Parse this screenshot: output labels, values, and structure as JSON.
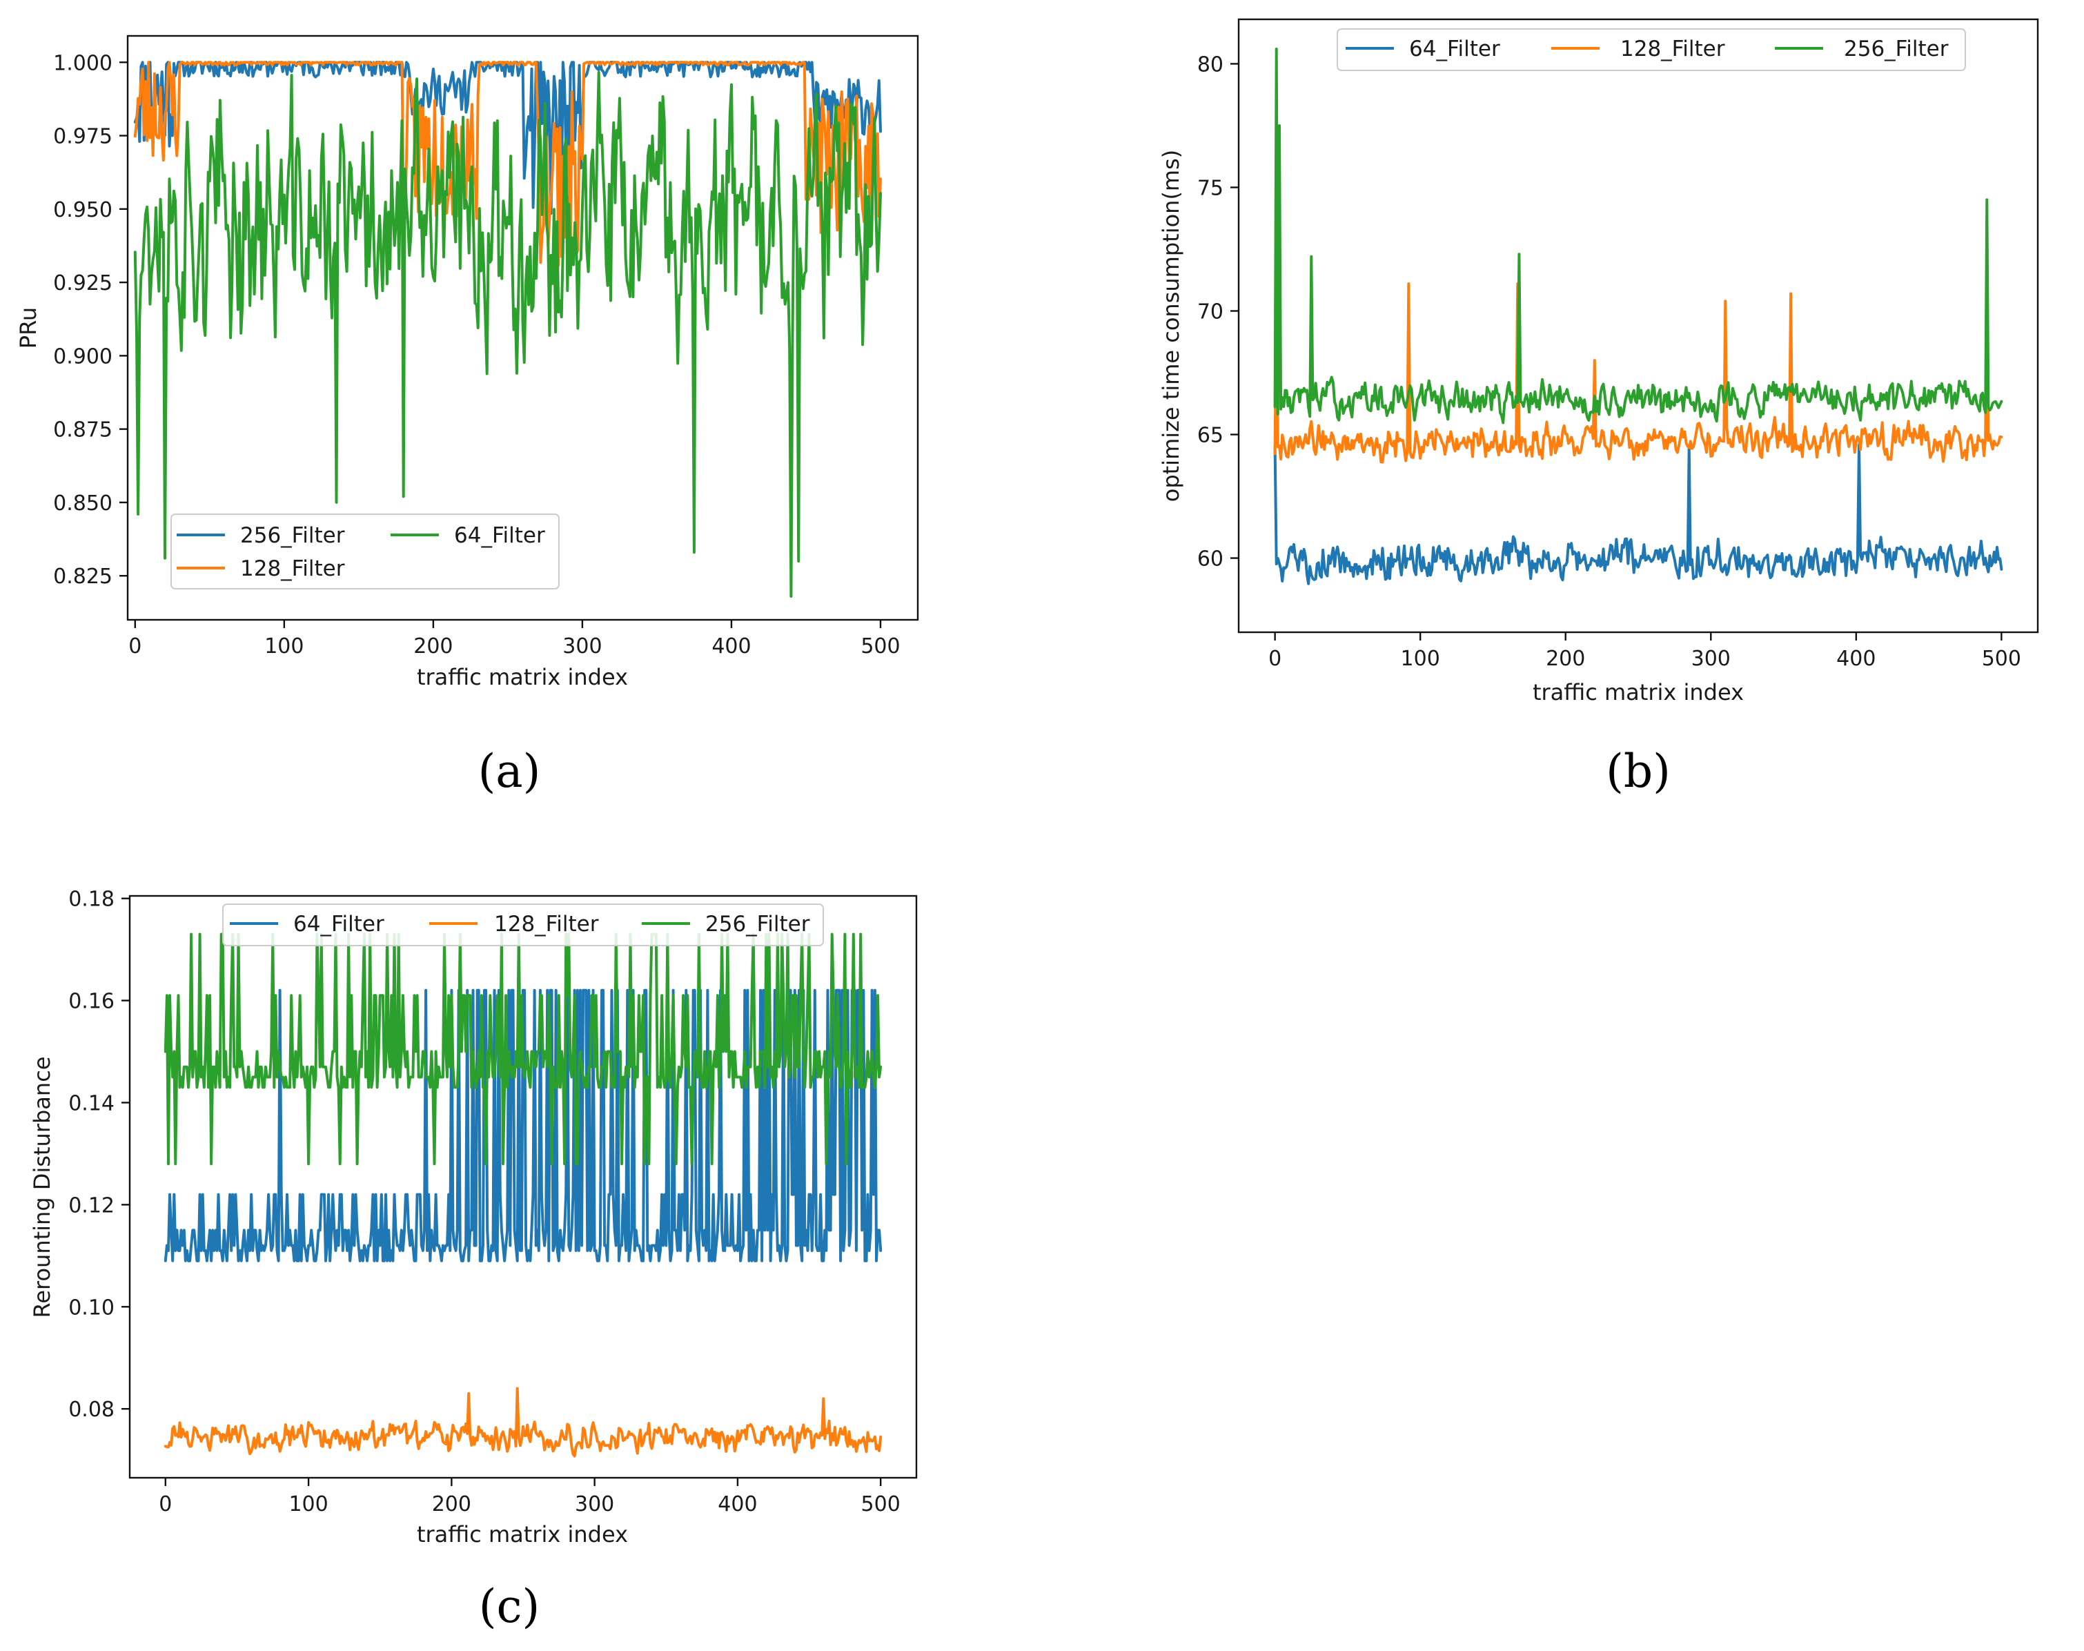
{
  "colors": {
    "blue": "#1f77b4",
    "orange": "#ff7f0e",
    "green": "#2ca02c"
  },
  "chart_data": [
    {
      "id": "a",
      "panel_label": "(a)",
      "type": "line",
      "title": "",
      "xlabel": "traffic matrix index",
      "ylabel": "PRu",
      "xlim": [
        -5,
        525
      ],
      "ylim": [
        0.81,
        1.009
      ],
      "xticks": [
        0,
        100,
        200,
        300,
        400,
        500
      ],
      "yticks": [
        0.825,
        0.85,
        0.875,
        0.9,
        0.925,
        0.95,
        0.975,
        1.0
      ],
      "ytick_decimals": 3,
      "legend_position": "lower-left",
      "legend_columns": 2,
      "legend_order": [
        "256_Filter",
        "128_Filter",
        "64_Filter"
      ],
      "series": [
        {
          "name": "256_Filter",
          "color": "#1f77b4",
          "generator": {
            "type": "band",
            "base": 0.999,
            "amp": 0.004,
            "seed": 11,
            "segments": [
              {
                "x0": 0,
                "x1": 25,
                "base": 0.99,
                "amp": 0.02
              },
              {
                "x0": 185,
                "x1": 225,
                "base": 0.99,
                "amp": 0.008
              },
              {
                "x0": 260,
                "x1": 300,
                "base": 0.975,
                "amp": 0.03
              },
              {
                "x0": 455,
                "x1": 500,
                "base": 0.985,
                "amp": 0.01
              }
            ]
          },
          "points": []
        },
        {
          "name": "128_Filter",
          "color": "#ff7f0e",
          "generator": {
            "type": "band",
            "base": 1.0,
            "amp": 0.001,
            "seed": 23,
            "segments": [
              {
                "x0": 0,
                "x1": 30,
                "base": 0.985,
                "amp": 0.02
              },
              {
                "x0": 180,
                "x1": 230,
                "base": 0.97,
                "amp": 0.025
              },
              {
                "x0": 270,
                "x1": 300,
                "base": 0.96,
                "amp": 0.03
              },
              {
                "x0": 450,
                "x1": 500,
                "base": 0.965,
                "amp": 0.025
              }
            ]
          },
          "points": []
        },
        {
          "name": "64_Filter",
          "color": "#2ca02c",
          "generator": {
            "type": "noise",
            "base": 0.945,
            "amp": 0.05,
            "seed": 37,
            "min": 0.818,
            "max": 1.0,
            "spikes": [
              [
                2,
                0.846
              ],
              [
                20,
                0.831
              ],
              [
                135,
                0.85
              ],
              [
                180,
                0.852
              ],
              [
                375,
                0.833
              ],
              [
                440,
                0.818
              ],
              [
                445,
                0.83
              ]
            ]
          },
          "points": []
        }
      ]
    },
    {
      "id": "b",
      "panel_label": "(b)",
      "type": "line",
      "title": "",
      "xlabel": "traffic matrix index",
      "ylabel": "optimize time consumption(ms)",
      "xlim": [
        -25,
        525
      ],
      "ylim": [
        57,
        81.8
      ],
      "xticks": [
        0,
        100,
        200,
        300,
        400,
        500
      ],
      "yticks": [
        60,
        65,
        70,
        75,
        80
      ],
      "ytick_decimals": 0,
      "legend_position": "upper-center",
      "legend_columns": 3,
      "legend_order": [
        "64_Filter",
        "128_Filter",
        "256_Filter"
      ],
      "series": [
        {
          "name": "64_Filter",
          "color": "#1f77b4",
          "generator": {
            "type": "noise",
            "base": 59.9,
            "amp": 1.0,
            "seed": 5,
            "spikes": [
              [
                0,
                64.5
              ],
              [
                285,
                64.5
              ],
              [
                402,
                64.6
              ]
            ]
          },
          "points": []
        },
        {
          "name": "128_Filter",
          "color": "#ff7f0e",
          "generator": {
            "type": "noise",
            "base": 64.7,
            "amp": 0.9,
            "seed": 9,
            "spikes": [
              [
                1,
                71.4
              ],
              [
                92,
                71.1
              ],
              [
                167,
                71.1
              ],
              [
                220,
                68
              ],
              [
                310,
                70.4
              ],
              [
                355,
                70.7
              ],
              [
                490,
                71.4
              ]
            ]
          },
          "points": []
        },
        {
          "name": "256_Filter",
          "color": "#2ca02c",
          "generator": {
            "type": "noise",
            "base": 66.4,
            "amp": 0.9,
            "seed": 13,
            "spikes": [
              [
                1,
                80.6
              ],
              [
                3,
                77.5
              ],
              [
                25,
                72.2
              ],
              [
                168,
                72.3
              ],
              [
                490,
                74.5
              ]
            ]
          },
          "points": []
        }
      ]
    },
    {
      "id": "c",
      "panel_label": "(c)",
      "type": "line",
      "title": "",
      "xlabel": "traffic matrix index",
      "ylabel": "Rerounting Disturbance",
      "xlim": [
        -25,
        525
      ],
      "ylim": [
        0.0665,
        0.1805
      ],
      "xticks": [
        0,
        100,
        200,
        300,
        400,
        500
      ],
      "yticks": [
        0.08,
        0.1,
        0.12,
        0.14,
        0.16,
        0.18
      ],
      "ytick_decimals": 2,
      "legend_position": "upper-center",
      "legend_columns": 3,
      "legend_order": [
        "64_Filter",
        "128_Filter",
        "256_Filter"
      ],
      "series": [
        {
          "name": "64_Filter",
          "color": "#1f77b4",
          "generator": {
            "type": "levels",
            "seed": 21,
            "levels": [
              0.109,
              0.111,
              0.112,
              0.115,
              0.122
            ],
            "high": 0.162,
            "high_prob": [
              [
                0,
                200,
                0.02
              ],
              [
                200,
                320,
                0.25
              ],
              [
                320,
                420,
                0.2
              ],
              [
                420,
                500,
                0.35
              ]
            ]
          },
          "points": []
        },
        {
          "name": "128_Filter",
          "color": "#ff7f0e",
          "generator": {
            "type": "noise",
            "base": 0.0745,
            "amp": 0.0035,
            "seed": 31,
            "min": 0.0695,
            "max": 0.084,
            "spikes": [
              [
                212,
                0.083
              ],
              [
                246,
                0.084
              ],
              [
                460,
                0.082
              ]
            ]
          },
          "points": []
        },
        {
          "name": "256_Filter",
          "color": "#2ca02c",
          "generator": {
            "type": "levels",
            "seed": 41,
            "levels": [
              0.143,
              0.145,
              0.147,
              0.15
            ],
            "high": 0.161,
            "high2": 0.173,
            "low": 0.128,
            "high_prob": [
              [
                0,
                500,
                0.22
              ]
            ]
          },
          "points": []
        }
      ]
    }
  ]
}
